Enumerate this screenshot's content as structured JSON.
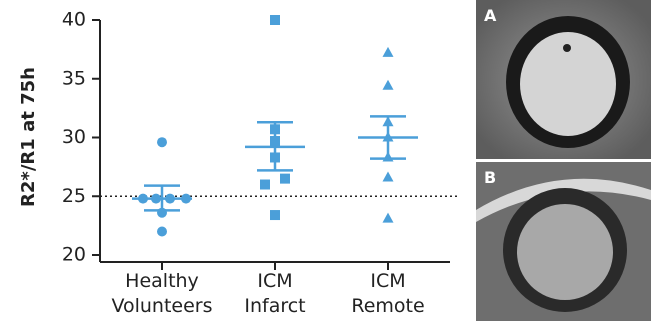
{
  "chart_data": {
    "type": "dot-plot",
    "y_label": "R2*/R1 at 75h",
    "ylim": [
      20,
      40
    ],
    "yticks": [
      20,
      25,
      30,
      35,
      40
    ],
    "reference_line": 25,
    "color": "#4b9fd9",
    "groups": [
      {
        "category_lines": [
          "Healthy",
          "Volunteers"
        ],
        "marker": "circle",
        "values": [
          29.6,
          24.8,
          24.8,
          24.8,
          24.8,
          23.6,
          22.0
        ],
        "mean": 24.8,
        "sem_upper": 25.9,
        "sem_lower": 23.8
      },
      {
        "category_lines": [
          "ICM",
          "Infarct"
        ],
        "marker": "square",
        "values": [
          40.0,
          30.7,
          29.7,
          28.3,
          26.5,
          26.0,
          23.4
        ],
        "mean": 29.2,
        "sem_upper": 31.3,
        "sem_lower": 27.2
      },
      {
        "category_lines": [
          "ICM",
          "Remote"
        ],
        "marker": "triangle",
        "values": [
          37.2,
          34.4,
          31.3,
          30.0,
          28.3,
          26.6,
          23.1
        ],
        "mean": 30.0,
        "sem_upper": 31.8,
        "sem_lower": 28.2
      }
    ]
  },
  "panels": [
    {
      "label": "A"
    },
    {
      "label": "B"
    }
  ]
}
